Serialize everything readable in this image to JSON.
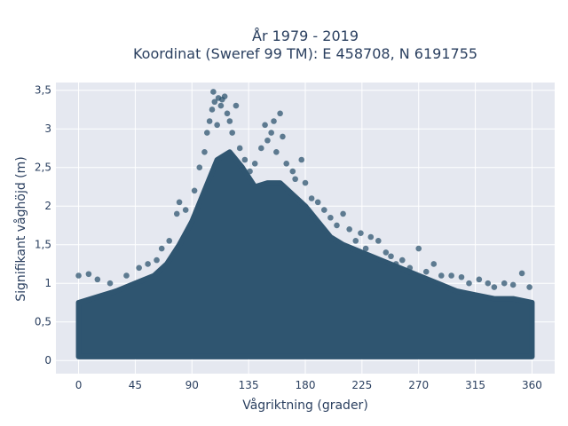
{
  "chart_data": {
    "type": "scatter",
    "title": [
      "År 1979 - 2019",
      "Koordinat (Sweref 99 TM): E 458708, N 6191755"
    ],
    "xlabel": "Vågriktning (grader)",
    "ylabel": "Signifikant våghöjd (m)",
    "xlim": [
      -18,
      378
    ],
    "ylim": [
      -0.17,
      3.6
    ],
    "x_ticks": [
      0,
      45,
      90,
      135,
      180,
      225,
      270,
      315,
      360
    ],
    "x_tick_labels": [
      "0",
      "45",
      "90",
      "135",
      "180",
      "225",
      "270",
      "315",
      "360"
    ],
    "y_ticks": [
      0,
      0.5,
      1,
      1.5,
      2,
      2.5,
      3,
      3.5
    ],
    "y_tick_labels": [
      "0",
      "0,5",
      "1",
      "1,5",
      "2",
      "2,5",
      "3",
      "3,5"
    ],
    "grid": true,
    "colors": {
      "marker": "#2f5570",
      "plot_bg": "#e5e8f0",
      "grid": "#ffffff",
      "text": "#2a3f5f"
    },
    "dense_region_envelope": {
      "x": [
        0,
        10,
        20,
        30,
        45,
        60,
        70,
        80,
        90,
        100,
        110,
        120,
        130,
        140,
        150,
        160,
        170,
        180,
        190,
        200,
        210,
        225,
        240,
        255,
        270,
        285,
        300,
        315,
        330,
        345,
        360
      ],
      "y_max": [
        0.75,
        0.8,
        0.85,
        0.9,
        1.0,
        1.1,
        1.25,
        1.5,
        1.8,
        2.2,
        2.6,
        2.7,
        2.5,
        2.25,
        2.3,
        2.3,
        2.15,
        2.0,
        1.8,
        1.6,
        1.5,
        1.4,
        1.3,
        1.2,
        1.1,
        1.0,
        0.9,
        0.85,
        0.8,
        0.8,
        0.75
      ],
      "y_min": 0.05
    },
    "outlier_points": [
      {
        "x": 0,
        "y": 1.1
      },
      {
        "x": 8,
        "y": 1.12
      },
      {
        "x": 15,
        "y": 1.05
      },
      {
        "x": 25,
        "y": 1.0
      },
      {
        "x": 38,
        "y": 1.1
      },
      {
        "x": 48,
        "y": 1.2
      },
      {
        "x": 55,
        "y": 1.25
      },
      {
        "x": 62,
        "y": 1.3
      },
      {
        "x": 66,
        "y": 1.45
      },
      {
        "x": 72,
        "y": 1.55
      },
      {
        "x": 78,
        "y": 1.9
      },
      {
        "x": 80,
        "y": 2.05
      },
      {
        "x": 85,
        "y": 1.95
      },
      {
        "x": 92,
        "y": 2.2
      },
      {
        "x": 96,
        "y": 2.5
      },
      {
        "x": 100,
        "y": 2.7
      },
      {
        "x": 102,
        "y": 2.95
      },
      {
        "x": 104,
        "y": 3.1
      },
      {
        "x": 106,
        "y": 3.25
      },
      {
        "x": 107,
        "y": 3.48
      },
      {
        "x": 108,
        "y": 3.35
      },
      {
        "x": 110,
        "y": 3.05
      },
      {
        "x": 111,
        "y": 3.4
      },
      {
        "x": 113,
        "y": 3.3
      },
      {
        "x": 114,
        "y": 3.38
      },
      {
        "x": 116,
        "y": 3.42
      },
      {
        "x": 118,
        "y": 3.2
      },
      {
        "x": 120,
        "y": 3.1
      },
      {
        "x": 122,
        "y": 2.95
      },
      {
        "x": 125,
        "y": 3.3
      },
      {
        "x": 128,
        "y": 2.75
      },
      {
        "x": 132,
        "y": 2.6
      },
      {
        "x": 136,
        "y": 2.45
      },
      {
        "x": 140,
        "y": 2.55
      },
      {
        "x": 145,
        "y": 2.75
      },
      {
        "x": 148,
        "y": 3.05
      },
      {
        "x": 150,
        "y": 2.85
      },
      {
        "x": 153,
        "y": 2.95
      },
      {
        "x": 155,
        "y": 3.1
      },
      {
        "x": 157,
        "y": 2.7
      },
      {
        "x": 160,
        "y": 3.2
      },
      {
        "x": 162,
        "y": 2.9
      },
      {
        "x": 165,
        "y": 2.55
      },
      {
        "x": 170,
        "y": 2.45
      },
      {
        "x": 172,
        "y": 2.35
      },
      {
        "x": 177,
        "y": 2.6
      },
      {
        "x": 180,
        "y": 2.3
      },
      {
        "x": 185,
        "y": 2.1
      },
      {
        "x": 190,
        "y": 2.05
      },
      {
        "x": 195,
        "y": 1.95
      },
      {
        "x": 200,
        "y": 1.85
      },
      {
        "x": 205,
        "y": 1.75
      },
      {
        "x": 210,
        "y": 1.9
      },
      {
        "x": 215,
        "y": 1.7
      },
      {
        "x": 220,
        "y": 1.55
      },
      {
        "x": 224,
        "y": 1.65
      },
      {
        "x": 228,
        "y": 1.45
      },
      {
        "x": 232,
        "y": 1.6
      },
      {
        "x": 238,
        "y": 1.55
      },
      {
        "x": 244,
        "y": 1.4
      },
      {
        "x": 248,
        "y": 1.35
      },
      {
        "x": 252,
        "y": 1.25
      },
      {
        "x": 257,
        "y": 1.3
      },
      {
        "x": 263,
        "y": 1.2
      },
      {
        "x": 270,
        "y": 1.45
      },
      {
        "x": 276,
        "y": 1.15
      },
      {
        "x": 282,
        "y": 1.25
      },
      {
        "x": 288,
        "y": 1.1
      },
      {
        "x": 296,
        "y": 1.1
      },
      {
        "x": 304,
        "y": 1.08
      },
      {
        "x": 310,
        "y": 1.0
      },
      {
        "x": 318,
        "y": 1.05
      },
      {
        "x": 325,
        "y": 1.0
      },
      {
        "x": 330,
        "y": 0.95
      },
      {
        "x": 338,
        "y": 1.0
      },
      {
        "x": 345,
        "y": 0.98
      },
      {
        "x": 352,
        "y": 1.13
      },
      {
        "x": 358,
        "y": 0.95
      }
    ]
  }
}
